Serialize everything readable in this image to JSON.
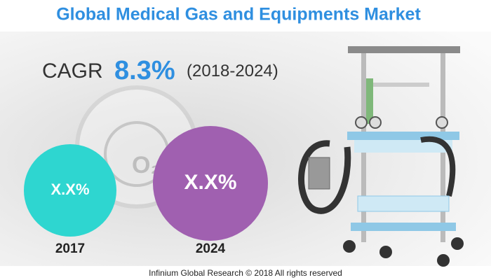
{
  "header": {
    "title": "Global Medical Gas and Equipments Market"
  },
  "cagr": {
    "label": "CAGR",
    "value": "8.3%",
    "period": "(2018-2024)"
  },
  "circles": [
    {
      "value": "X.X%",
      "year": "2017"
    },
    {
      "value": "X.X%",
      "year": "2024"
    }
  ],
  "footer": {
    "text": "Infinium Global Research © 2018 All rights reserved"
  }
}
